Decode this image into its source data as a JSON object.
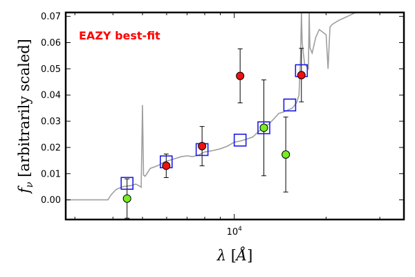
{
  "chart_data": {
    "type": "scatter",
    "title": "",
    "annotation": {
      "text": "EAZY best-fit",
      "color": "#ff0000"
    },
    "xlabel": "λ [Å]",
    "ylabel": "fν [arbitrarily scaled]",
    "x_scale": "log",
    "xlim": [
      2800,
      36000
    ],
    "ylim": [
      -0.0075,
      0.0715
    ],
    "yticks": [
      0.0,
      0.01,
      0.02,
      0.03,
      0.04,
      0.05,
      0.06,
      0.07
    ],
    "ytick_labels": [
      "0.00",
      "0.01",
      "0.02",
      "0.03",
      "0.04",
      "0.05",
      "0.06",
      "0.07"
    ],
    "xtick_major": [
      {
        "value": 10000,
        "label": "10^4"
      }
    ],
    "xtick_minor": [
      3000,
      4000,
      5000,
      6000,
      7000,
      8000,
      9000,
      20000,
      30000
    ],
    "grid": false,
    "colors": {
      "sed": "#9e9e9e",
      "model": "#1a1ae6",
      "detection": "#ee1111",
      "low_sn": "#77ee22",
      "errorbar": "#000000"
    },
    "model_fluxes": [
      {
        "x": 4450,
        "y": 0.0063
      },
      {
        "x": 5980,
        "y": 0.0145
      },
      {
        "x": 7840,
        "y": 0.0192
      },
      {
        "x": 10450,
        "y": 0.0228
      },
      {
        "x": 12500,
        "y": 0.0275
      },
      {
        "x": 15200,
        "y": 0.0362
      },
      {
        "x": 16600,
        "y": 0.0493
      }
    ],
    "observed_detections": [
      {
        "x": 5980,
        "y": 0.013,
        "yerr": 0.0045
      },
      {
        "x": 7840,
        "y": 0.0205,
        "yerr": 0.0075
      },
      {
        "x": 10450,
        "y": 0.0473,
        "yerr": 0.0103
      },
      {
        "x": 16600,
        "y": 0.0476,
        "yerr": 0.0102
      }
    ],
    "observed_low_sn": [
      {
        "x": 4450,
        "y": 0.0005,
        "yerr": 0.0075
      },
      {
        "x": 12500,
        "y": 0.0275,
        "yerr": 0.0183
      },
      {
        "x": 14750,
        "y": 0.0173,
        "yerr": 0.0143
      }
    ],
    "sed_curve": [
      [
        2800,
        0.0
      ],
      [
        3850,
        0.0
      ],
      [
        3950,
        0.002
      ],
      [
        4100,
        0.004
      ],
      [
        4300,
        0.005
      ],
      [
        4600,
        0.0055
      ],
      [
        4750,
        0.006
      ],
      [
        4850,
        0.0055
      ],
      [
        4950,
        0.0048
      ],
      [
        5000,
        0.0362
      ],
      [
        5040,
        0.0095
      ],
      [
        5100,
        0.009
      ],
      [
        5300,
        0.012
      ],
      [
        5600,
        0.013
      ],
      [
        5900,
        0.0145
      ],
      [
        6300,
        0.0155
      ],
      [
        6700,
        0.0165
      ],
      [
        7000,
        0.0168
      ],
      [
        7300,
        0.0165
      ],
      [
        7600,
        0.017
      ],
      [
        8000,
        0.0183
      ],
      [
        8500,
        0.0188
      ],
      [
        9000,
        0.0195
      ],
      [
        9500,
        0.0205
      ],
      [
        10000,
        0.022
      ],
      [
        10500,
        0.0225
      ],
      [
        11000,
        0.0232
      ],
      [
        11500,
        0.024
      ],
      [
        12000,
        0.026
      ],
      [
        12500,
        0.0278
      ],
      [
        13000,
        0.029
      ],
      [
        13500,
        0.031
      ],
      [
        14000,
        0.033
      ],
      [
        14500,
        0.0335
      ],
      [
        15000,
        0.0343
      ],
      [
        15500,
        0.035
      ],
      [
        16000,
        0.037
      ],
      [
        16300,
        0.04
      ],
      [
        16500,
        0.055
      ],
      [
        16600,
        0.0715
      ],
      [
        16700,
        0.06
      ],
      [
        17000,
        0.052
      ],
      [
        17500,
        0.05
      ],
      [
        17600,
        0.0715
      ],
      [
        17700,
        0.058
      ],
      [
        18000,
        0.056
      ],
      [
        18500,
        0.062
      ],
      [
        19000,
        0.065
      ],
      [
        20000,
        0.063
      ],
      [
        20300,
        0.05
      ],
      [
        20600,
        0.066
      ],
      [
        21000,
        0.067
      ],
      [
        22000,
        0.0685
      ],
      [
        23000,
        0.0695
      ],
      [
        24000,
        0.0705
      ],
      [
        25000,
        0.0715
      ]
    ]
  }
}
